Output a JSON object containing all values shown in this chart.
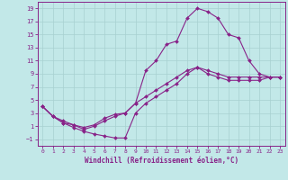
{
  "xlabel": "Windchill (Refroidissement éolien,°C)",
  "bg_color": "#c2e8e8",
  "line_color": "#882288",
  "grid_color": "#a8d0d0",
  "xlim": [
    -0.5,
    23.5
  ],
  "ylim": [
    -2,
    20
  ],
  "xticks": [
    0,
    1,
    2,
    3,
    4,
    5,
    6,
    7,
    8,
    9,
    10,
    11,
    12,
    13,
    14,
    15,
    16,
    17,
    18,
    19,
    20,
    21,
    22,
    23
  ],
  "yticks": [
    -1,
    1,
    3,
    5,
    7,
    9,
    11,
    13,
    15,
    17,
    19
  ],
  "line1_x": [
    0,
    1,
    2,
    3,
    4,
    5,
    6,
    7,
    8,
    9,
    10,
    11,
    12,
    13,
    14,
    15,
    16,
    17,
    18,
    19,
    20,
    21,
    22,
    23
  ],
  "line1_y": [
    4,
    2.5,
    1.8,
    1.2,
    0.8,
    1.2,
    2.2,
    2.8,
    3.0,
    4.5,
    5.5,
    6.5,
    7.5,
    8.5,
    9.5,
    10.0,
    9.5,
    9.0,
    8.5,
    8.5,
    8.5,
    8.5,
    8.5,
    8.5
  ],
  "line2_x": [
    0,
    1,
    2,
    3,
    4,
    5,
    6,
    7,
    8,
    9,
    10,
    11,
    12,
    13,
    14,
    15,
    16,
    17,
    18,
    19,
    20,
    21,
    22,
    23
  ],
  "line2_y": [
    4,
    2.5,
    1.5,
    1.2,
    0.5,
    1.0,
    1.8,
    2.5,
    3.0,
    4.5,
    9.5,
    11.0,
    13.5,
    14.0,
    17.5,
    19.0,
    18.5,
    17.5,
    15.0,
    14.5,
    11.0,
    9.0,
    8.5,
    8.5
  ],
  "line3_x": [
    0,
    1,
    2,
    3,
    4,
    5,
    6,
    7,
    8,
    9,
    10,
    11,
    12,
    13,
    14,
    15,
    16,
    17,
    18,
    19,
    20,
    21,
    22,
    23
  ],
  "line3_y": [
    4,
    2.5,
    1.5,
    0.8,
    0.2,
    -0.2,
    -0.5,
    -0.8,
    -0.8,
    3.0,
    4.5,
    5.5,
    6.5,
    7.5,
    9.0,
    10.0,
    9.0,
    8.5,
    8.0,
    8.0,
    8.0,
    8.0,
    8.5,
    8.5
  ]
}
